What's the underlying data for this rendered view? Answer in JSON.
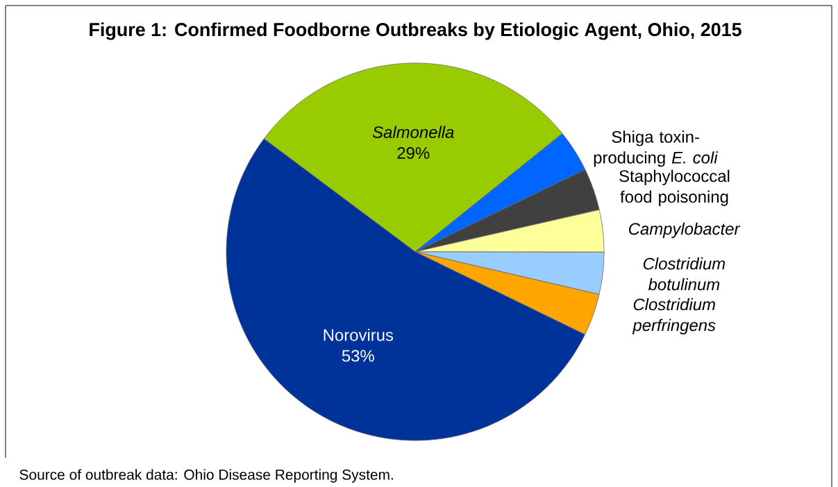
{
  "chart_data": {
    "type": "pie",
    "title": "Figure 1:  Confirmed Foodborne Outbreaks by Etiologic Agent, Ohio, 2015",
    "categories": [
      "*Salmonella*",
      "Shiga toxin-producing *E. coli*",
      "Staphylococcal food poisoning",
      "*Campylobacter*",
      "*Clostridium botulinum*",
      "*Clostridium perfringens*",
      "Norovirus"
    ],
    "values": [
      29,
      3.6,
      3.6,
      3.6,
      3.6,
      3.6,
      53
    ],
    "colors": [
      "#99cc00",
      "#0066ff",
      "#404040",
      "#ffff99",
      "#99ccff",
      "#ffa500",
      "#003399"
    ],
    "value_labels": [
      "29%",
      null,
      null,
      null,
      null,
      null,
      "53%"
    ],
    "annotations": [
      "Source of outbreak data:  Ohio Disease Reporting System."
    ]
  }
}
